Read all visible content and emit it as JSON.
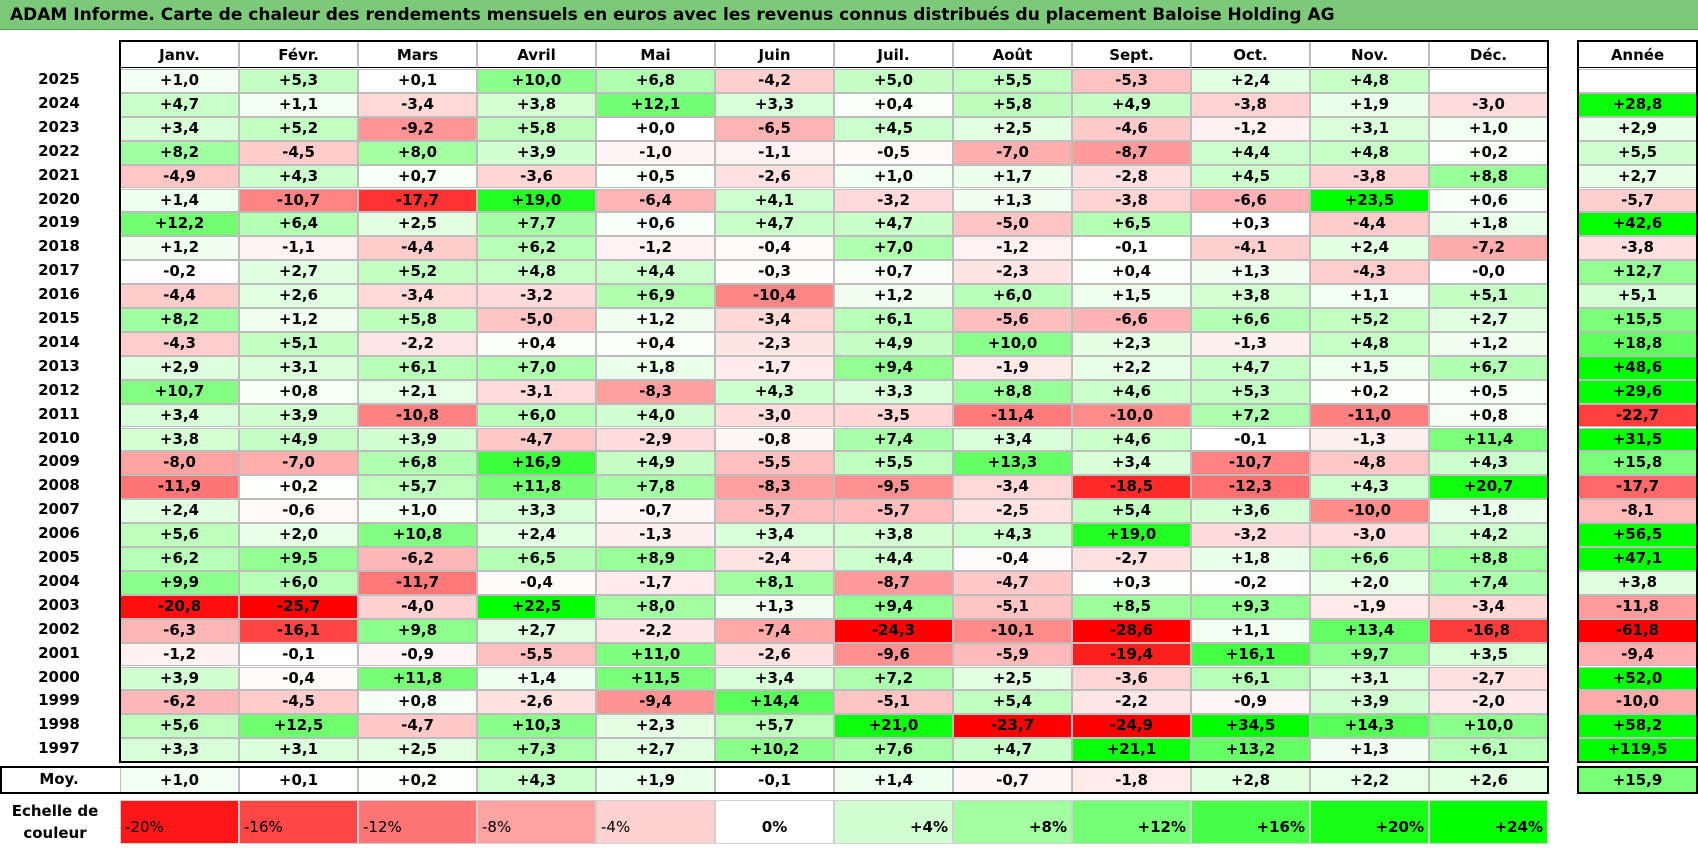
{
  "title": "ADAM Informe. Carte de chaleur des rendements mensuels en euros avec les revenus connus distribués du placement Baloise Holding AG",
  "annual_header": "Année",
  "avg_label": "Moy.",
  "scale_label_line1": "Echelle de",
  "scale_label_line2": "couleur",
  "colors": {
    "red": "#ff0000",
    "green": "#00ff00",
    "white": "#ffffff",
    "title_bg": "#7dc97a"
  },
  "chart_data": {
    "type": "heatmap",
    "title": "ADAM Informe. Carte de chaleur des rendements mensuels en euros avec les revenus connus distribués du placement Baloise Holding AG",
    "months": [
      "Janv.",
      "Févr.",
      "Mars",
      "Avril",
      "Mai",
      "Juin",
      "Juil.",
      "Août",
      "Sept.",
      "Oct.",
      "Nov.",
      "Déc."
    ],
    "rows": [
      {
        "year": "2025",
        "values": [
          "+1,0",
          "+5,3",
          "+0,1",
          "+10,0",
          "+6,8",
          "-4,2",
          "+5,0",
          "+5,5",
          "-5,3",
          "+2,4",
          "+4,8",
          ""
        ],
        "annual": ""
      },
      {
        "year": "2024",
        "values": [
          "+4,7",
          "+1,1",
          "-3,4",
          "+3,8",
          "+12,1",
          "+3,3",
          "+0,4",
          "+5,8",
          "+4,9",
          "-3,8",
          "+1,9",
          "-3,0"
        ],
        "annual": "+28,8"
      },
      {
        "year": "2023",
        "values": [
          "+3,4",
          "+5,2",
          "-9,2",
          "+5,8",
          "+0,0",
          "-6,5",
          "+4,5",
          "+2,5",
          "-4,6",
          "-1,2",
          "+3,1",
          "+1,0"
        ],
        "annual": "+2,9"
      },
      {
        "year": "2022",
        "values": [
          "+8,2",
          "-4,5",
          "+8,0",
          "+3,9",
          "-1,0",
          "-1,1",
          "-0,5",
          "-7,0",
          "-8,7",
          "+4,4",
          "+4,8",
          "+0,2"
        ],
        "annual": "+5,5"
      },
      {
        "year": "2021",
        "values": [
          "-4,9",
          "+4,3",
          "+0,7",
          "-3,6",
          "+0,5",
          "-2,6",
          "+1,0",
          "+1,7",
          "-2,8",
          "+4,5",
          "-3,8",
          "+8,8"
        ],
        "annual": "+2,7"
      },
      {
        "year": "2020",
        "values": [
          "+1,4",
          "-10,7",
          "-17,7",
          "+19,0",
          "-6,4",
          "+4,1",
          "-3,2",
          "+1,3",
          "-3,8",
          "-6,6",
          "+23,5",
          "+0,6"
        ],
        "annual": "-5,7"
      },
      {
        "year": "2019",
        "values": [
          "+12,2",
          "+6,4",
          "+2,5",
          "+7,7",
          "+0,6",
          "+4,7",
          "+4,7",
          "-5,0",
          "+6,5",
          "+0,3",
          "-4,4",
          "+1,8"
        ],
        "annual": "+42,6"
      },
      {
        "year": "2018",
        "values": [
          "+1,2",
          "-1,1",
          "-4,4",
          "+6,2",
          "-1,2",
          "-0,4",
          "+7,0",
          "-1,2",
          "-0,1",
          "-4,1",
          "+2,4",
          "-7,2"
        ],
        "annual": "-3,8"
      },
      {
        "year": "2017",
        "values": [
          "-0,2",
          "+2,7",
          "+5,2",
          "+4,8",
          "+4,4",
          "-0,3",
          "+0,7",
          "-2,3",
          "+0,4",
          "+1,3",
          "-4,3",
          "-0,0"
        ],
        "annual": "+12,7"
      },
      {
        "year": "2016",
        "values": [
          "-4,4",
          "+2,6",
          "-3,4",
          "-3,2",
          "+6,9",
          "-10,4",
          "+1,2",
          "+6,0",
          "+1,5",
          "+3,8",
          "+1,1",
          "+5,1"
        ],
        "annual": "+5,1"
      },
      {
        "year": "2015",
        "values": [
          "+8,2",
          "+1,2",
          "+5,8",
          "-5,0",
          "+1,2",
          "-3,4",
          "+6,1",
          "-5,6",
          "-6,6",
          "+6,6",
          "+5,2",
          "+2,7"
        ],
        "annual": "+15,5"
      },
      {
        "year": "2014",
        "values": [
          "-4,3",
          "+5,1",
          "-2,2",
          "+0,4",
          "+0,4",
          "-2,3",
          "+4,9",
          "+10,0",
          "+2,3",
          "-1,3",
          "+4,8",
          "+1,2"
        ],
        "annual": "+18,8"
      },
      {
        "year": "2013",
        "values": [
          "+2,9",
          "+3,1",
          "+6,1",
          "+7,0",
          "+1,8",
          "-1,7",
          "+9,4",
          "-1,9",
          "+2,2",
          "+4,7",
          "+1,5",
          "+6,7"
        ],
        "annual": "+48,6"
      },
      {
        "year": "2012",
        "values": [
          "+10,7",
          "+0,8",
          "+2,1",
          "-3,1",
          "-8,3",
          "+4,3",
          "+3,3",
          "+8,8",
          "+4,6",
          "+5,3",
          "+0,2",
          "+0,5"
        ],
        "annual": "+29,6"
      },
      {
        "year": "2011",
        "values": [
          "+3,4",
          "+3,9",
          "-10,8",
          "+6,0",
          "+4,0",
          "-3,0",
          "-3,5",
          "-11,4",
          "-10,0",
          "+7,2",
          "-11,0",
          "+0,8"
        ],
        "annual": "-22,7"
      },
      {
        "year": "2010",
        "values": [
          "+3,8",
          "+4,9",
          "+3,9",
          "-4,7",
          "-2,9",
          "-0,8",
          "+7,4",
          "+3,4",
          "+4,6",
          "-0,1",
          "-1,3",
          "+11,4"
        ],
        "annual": "+31,5"
      },
      {
        "year": "2009",
        "values": [
          "-8,0",
          "-7,0",
          "+6,8",
          "+16,9",
          "+4,9",
          "-5,5",
          "+5,5",
          "+13,3",
          "+3,4",
          "-10,7",
          "-4,8",
          "+4,3"
        ],
        "annual": "+15,8"
      },
      {
        "year": "2008",
        "values": [
          "-11,9",
          "+0,2",
          "+5,7",
          "+11,8",
          "+7,8",
          "-8,3",
          "-9,5",
          "-3,4",
          "-18,5",
          "-12,3",
          "+4,3",
          "+20,7"
        ],
        "annual": "-17,7"
      },
      {
        "year": "2007",
        "values": [
          "+2,4",
          "-0,6",
          "+1,0",
          "+3,3",
          "-0,7",
          "-5,7",
          "-5,7",
          "-2,5",
          "+5,4",
          "+3,6",
          "-10,0",
          "+1,8"
        ],
        "annual": "-8,1"
      },
      {
        "year": "2006",
        "values": [
          "+5,6",
          "+2,0",
          "+10,8",
          "+2,4",
          "-1,3",
          "+3,4",
          "+3,8",
          "+4,3",
          "+19,0",
          "-3,2",
          "-3,0",
          "+4,2"
        ],
        "annual": "+56,5"
      },
      {
        "year": "2005",
        "values": [
          "+6,2",
          "+9,5",
          "-6,2",
          "+6,5",
          "+8,9",
          "-2,4",
          "+4,4",
          "-0,4",
          "-2,7",
          "+1,8",
          "+6,6",
          "+8,8"
        ],
        "annual": "+47,1"
      },
      {
        "year": "2004",
        "values": [
          "+9,9",
          "+6,0",
          "-11,7",
          "-0,4",
          "-1,7",
          "+8,1",
          "-8,7",
          "-4,7",
          "+0,3",
          "-0,2",
          "+2,0",
          "+7,4"
        ],
        "annual": "+3,8"
      },
      {
        "year": "2003",
        "values": [
          "-20,8",
          "-25,7",
          "-4,0",
          "+22,5",
          "+8,0",
          "+1,3",
          "+9,4",
          "-5,1",
          "+8,5",
          "+9,3",
          "-1,9",
          "-3,4"
        ],
        "annual": "-11,8"
      },
      {
        "year": "2002",
        "values": [
          "-6,3",
          "-16,1",
          "+9,8",
          "+2,7",
          "-2,2",
          "-7,4",
          "-24,3",
          "-10,1",
          "-28,6",
          "+1,1",
          "+13,4",
          "-16,8"
        ],
        "annual": "-61,8"
      },
      {
        "year": "2001",
        "values": [
          "-1,2",
          "-0,1",
          "-0,9",
          "-5,5",
          "+11,0",
          "-2,6",
          "-9,6",
          "-5,9",
          "-19,4",
          "+16,1",
          "+9,7",
          "+3,5"
        ],
        "annual": "-9,4"
      },
      {
        "year": "2000",
        "values": [
          "+3,9",
          "-0,4",
          "+11,8",
          "+1,4",
          "+11,5",
          "+3,4",
          "+7,2",
          "+2,5",
          "-3,6",
          "+6,1",
          "+3,1",
          "-2,7"
        ],
        "annual": "+52,0"
      },
      {
        "year": "1999",
        "values": [
          "-6,2",
          "-4,5",
          "+0,8",
          "-2,6",
          "-9,4",
          "+14,4",
          "-5,1",
          "+5,4",
          "-2,2",
          "-0,9",
          "+3,9",
          "-2,0"
        ],
        "annual": "-10,0"
      },
      {
        "year": "1998",
        "values": [
          "+5,6",
          "+12,5",
          "-4,7",
          "+10,3",
          "+2,3",
          "+5,7",
          "+21,0",
          "-23,7",
          "-24,9",
          "+34,5",
          "+14,3",
          "+10,0"
        ],
        "annual": "+58,2"
      },
      {
        "year": "1997",
        "values": [
          "+3,3",
          "+3,1",
          "+2,5",
          "+7,3",
          "+2,7",
          "+10,2",
          "+7,6",
          "+4,7",
          "+21,1",
          "+13,2",
          "+1,3",
          "+6,1"
        ],
        "annual": "+119,5"
      }
    ],
    "averages": [
      "+1,0",
      "+0,1",
      "+0,2",
      "+4,3",
      "+1,9",
      "-0,1",
      "+1,4",
      "-0,7",
      "-1,8",
      "+2,8",
      "+2,2",
      "+2,6"
    ],
    "average_annual": "+15,9",
    "color_scale": [
      "-20%",
      "-16%",
      "-12%",
      "-8%",
      "-4%",
      "0%",
      "+4%",
      "+8%",
      "+12%",
      "+16%",
      "+20%",
      "+24%"
    ],
    "color_scale_values": [
      -20,
      -16,
      -12,
      -8,
      -4,
      0,
      4,
      8,
      12,
      16,
      20,
      24
    ]
  }
}
